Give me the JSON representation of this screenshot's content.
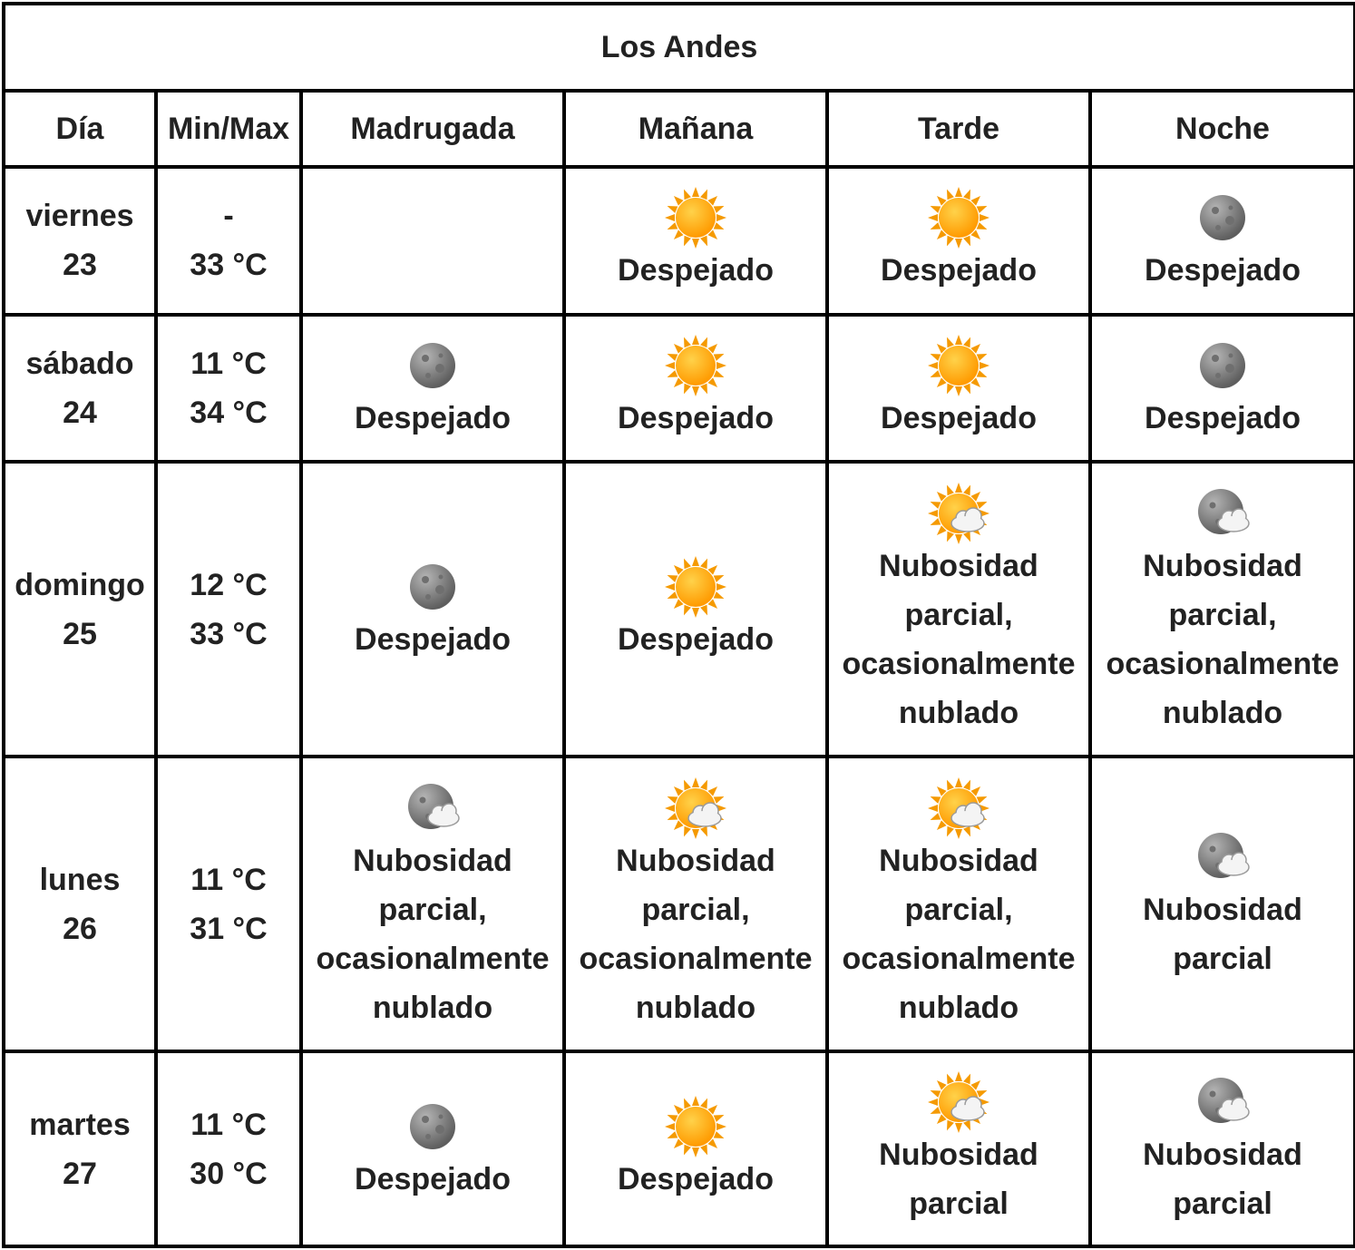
{
  "title": "Los Andes",
  "headers": [
    "Día",
    "Min/Max",
    "Madrugada",
    "Mañana",
    "Tarde",
    "Noche"
  ],
  "rows": [
    {
      "day": "viernes",
      "date": "23",
      "min": "-",
      "max": "33 °C",
      "periods": [
        null,
        {
          "icon": "sun-icon",
          "text": "Despejado"
        },
        {
          "icon": "sun-icon",
          "text": "Despejado"
        },
        {
          "icon": "moon-icon",
          "text": "Despejado"
        }
      ]
    },
    {
      "day": "sábado",
      "date": "24",
      "min": "11 °C",
      "max": "34 °C",
      "periods": [
        {
          "icon": "moon-icon",
          "text": "Despejado"
        },
        {
          "icon": "sun-icon",
          "text": "Despejado"
        },
        {
          "icon": "sun-icon",
          "text": "Despejado"
        },
        {
          "icon": "moon-icon",
          "text": "Despejado"
        }
      ]
    },
    {
      "day": "domingo",
      "date": "25",
      "min": "12 °C",
      "max": "33 °C",
      "periods": [
        {
          "icon": "moon-icon",
          "text": "Despejado"
        },
        {
          "icon": "sun-icon",
          "text": "Despejado"
        },
        {
          "icon": "sun-cloud-icon",
          "text": "Nubosidad parcial, ocasionalmente nublado"
        },
        {
          "icon": "moon-cloud-icon",
          "text": "Nubosidad parcial, ocasionalmente nublado"
        }
      ]
    },
    {
      "day": "lunes",
      "date": "26",
      "min": "11 °C",
      "max": "31 °C",
      "periods": [
        {
          "icon": "moon-cloud-icon",
          "text": "Nubosidad parcial, ocasionalmente nublado"
        },
        {
          "icon": "sun-cloud-icon",
          "text": "Nubosidad parcial, ocasionalmente nublado"
        },
        {
          "icon": "sun-cloud-icon",
          "text": "Nubosidad parcial, ocasionalmente nublado"
        },
        {
          "icon": "moon-cloud-icon",
          "text": "Nubosidad parcial"
        }
      ]
    },
    {
      "day": "martes",
      "date": "27",
      "min": "11 °C",
      "max": "30 °C",
      "periods": [
        {
          "icon": "moon-icon",
          "text": "Despejado"
        },
        {
          "icon": "sun-icon",
          "text": "Despejado"
        },
        {
          "icon": "sun-cloud-icon",
          "text": "Nubosidad parcial"
        },
        {
          "icon": "moon-cloud-icon",
          "text": "Nubosidad parcial"
        }
      ]
    }
  ],
  "colors": {
    "border": "#000000",
    "text": "#222222",
    "sun_core": "#ffb000",
    "sun_ray": "#f59a00",
    "moon": "#8a8a8a",
    "cloud": "#f4f4f4"
  }
}
